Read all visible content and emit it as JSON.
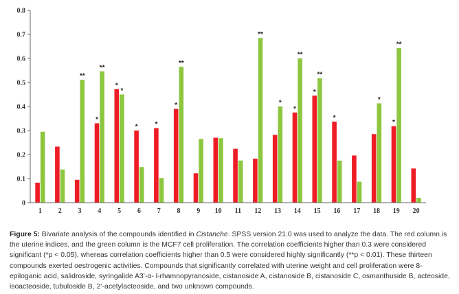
{
  "chart_data": {
    "type": "bar",
    "categories": [
      "1",
      "2",
      "3",
      "4",
      "5",
      "6",
      "7",
      "8",
      "9",
      "10",
      "11",
      "12",
      "13",
      "14",
      "15",
      "16",
      "17",
      "18",
      "19",
      "20"
    ],
    "series": [
      {
        "color": "#ee1c25",
        "values": [
          0.083,
          0.233,
          0.095,
          0.33,
          0.472,
          0.3,
          0.31,
          0.39,
          0.122,
          0.27,
          0.224,
          0.183,
          0.282,
          0.375,
          0.445,
          0.337,
          0.196,
          0.285,
          0.318,
          0.142
        ]
      },
      {
        "color": "#8dc63f",
        "values": [
          0.295,
          0.138,
          0.511,
          0.546,
          0.45,
          0.148,
          0.102,
          0.565,
          0.265,
          0.268,
          0.175,
          0.685,
          0.4,
          0.6,
          0.517,
          0.175,
          0.087,
          0.413,
          0.643,
          0.02
        ]
      }
    ],
    "significance": [
      [
        "",
        ""
      ],
      [
        "",
        ""
      ],
      [
        "",
        "**"
      ],
      [
        "*",
        "**"
      ],
      [
        "*",
        "*"
      ],
      [
        "*",
        ""
      ],
      [
        "*",
        ""
      ],
      [
        "*",
        "**"
      ],
      [
        "",
        ""
      ],
      [
        "",
        ""
      ],
      [
        "",
        ""
      ],
      [
        "",
        "**"
      ],
      [
        "",
        "*"
      ],
      [
        "*",
        "**"
      ],
      [
        "*",
        "**"
      ],
      [
        "*",
        ""
      ],
      [
        "",
        ""
      ],
      [
        "",
        "*"
      ],
      [
        "*",
        "**"
      ],
      [
        "",
        ""
      ]
    ],
    "ylim": [
      0,
      0.8
    ],
    "yticks": [
      "0",
      "0.1",
      "0.2",
      "0.3",
      "0.4",
      "0.5",
      "0.6",
      "0.7",
      "0.8"
    ],
    "grid": false
  },
  "caption": {
    "label": "Figure 5:",
    "text_before_italic": " Bivariate analysis of the compounds identified in ",
    "italic": "Cistanche",
    "text_after_italic": ". SPSS version 21.0 was used to analyze the data. The red column is the uterine indices, and the green column is the MCF7 cell proliferation. The correlation coefficients higher than 0.3 were considered significant (*p < 0.05), whereas correlation coefficients higher than 0.5 were considered highly significantly (**p < 0.01). These thirteen compounds exerted oestrogenic activities. Compounds that significantly correlated with uterine weight and cell proliferation were 8-epiloganic acid, salidroside, syringalide A3’-α- l-rhamnopyranoside, cistanoside A, cistanoside B, cistanoside C, osmanthuside B, acteoside, isoacteoside, tubuloside B, 2’-acetylacteoside, and two unknown compounds."
  }
}
